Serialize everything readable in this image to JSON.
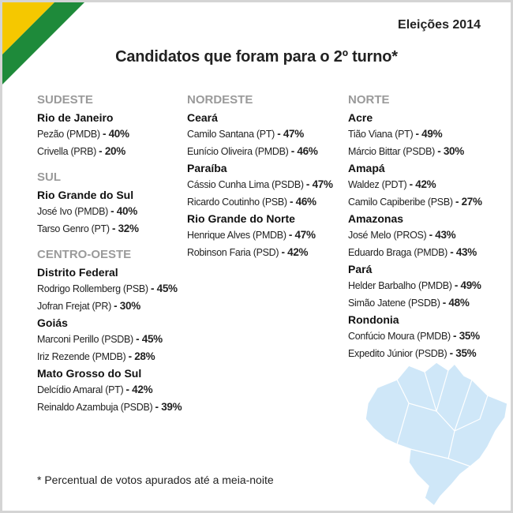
{
  "header": {
    "kicker": "Eleições 2014",
    "title": "Candidatos que foram para o 2º turno*"
  },
  "columns": [
    {
      "regions": [
        {
          "name": "SUDESTE",
          "states": [
            {
              "name": "Rio de Janeiro",
              "candidates": [
                {
                  "name": "Pezão (PMDB)",
                  "result": "- 40%"
                },
                {
                  "name": "Crivella (PRB)",
                  "result": "- 20%"
                }
              ]
            }
          ]
        },
        {
          "name": "SUL",
          "states": [
            {
              "name": "Rio Grande do Sul",
              "candidates": [
                {
                  "name": "José Ivo (PMDB)",
                  "result": "- 40%"
                },
                {
                  "name": "Tarso Genro (PT)",
                  "result": "- 32%"
                }
              ]
            }
          ]
        },
        {
          "name": "CENTRO-OESTE",
          "states": [
            {
              "name": "Distrito Federal",
              "candidates": [
                {
                  "name": "Rodrigo Rollemberg (PSB)",
                  "result": "- 45%"
                },
                {
                  "name": "Jofran Frejat (PR)",
                  "result": "- 30%"
                }
              ]
            },
            {
              "name": "Goiás",
              "candidates": [
                {
                  "name": "Marconi Perillo (PSDB)",
                  "result": "- 45%"
                },
                {
                  "name": "Iriz Rezende (PMDB)",
                  "result": "- 28%"
                }
              ]
            },
            {
              "name": "Mato Grosso do Sul",
              "candidates": [
                {
                  "name": "Delcídio Amaral (PT)",
                  "result": "- 42%"
                },
                {
                  "name": "Reinaldo Azambuja (PSDB)",
                  "result": "- 39%"
                }
              ]
            }
          ]
        }
      ]
    },
    {
      "regions": [
        {
          "name": "NORDESTE",
          "states": [
            {
              "name": "Ceará",
              "candidates": [
                {
                  "name": "Camilo Santana (PT)",
                  "result": "- 47%"
                },
                {
                  "name": "Eunício Oliveira (PMDB)",
                  "result": "- 46%"
                }
              ]
            },
            {
              "name": "Paraíba",
              "candidates": [
                {
                  "name": "Cássio Cunha Lima (PSDB)",
                  "result": "- 47%"
                },
                {
                  "name": "Ricardo Coutinho (PSB)",
                  "result": "- 46%"
                }
              ]
            },
            {
              "name": "Rio Grande do Norte",
              "candidates": [
                {
                  "name": "Henrique Alves (PMDB)",
                  "result": "- 47%"
                },
                {
                  "name": "Robinson Faria (PSD)",
                  "result": "- 42%"
                }
              ]
            }
          ]
        }
      ]
    },
    {
      "regions": [
        {
          "name": "NORTE",
          "states": [
            {
              "name": "Acre",
              "candidates": [
                {
                  "name": "Tião Viana (PT)",
                  "result": "- 49%"
                },
                {
                  "name": "Márcio Bittar (PSDB)",
                  "result": "- 30%"
                }
              ]
            },
            {
              "name": "Amapá",
              "candidates": [
                {
                  "name": "Waldez (PDT)",
                  "result": "- 42%"
                },
                {
                  "name": "Camilo Capiberibe (PSB)",
                  "result": "- 27%"
                }
              ]
            },
            {
              "name": "Amazonas",
              "candidates": [
                {
                  "name": "José Melo (PROS)",
                  "result": "- 43%"
                },
                {
                  "name": "Eduardo Braga (PMDB)",
                  "result": "- 43%"
                }
              ]
            },
            {
              "name": "Pará",
              "candidates": [
                {
                  "name": "Helder Barbalho (PMDB)",
                  "result": "- 49%"
                },
                {
                  "name": "Simão Jatene (PSDB)",
                  "result": "- 48%"
                }
              ]
            },
            {
              "name": "Rondonia",
              "candidates": [
                {
                  "name": "Confúcio Moura (PMDB)",
                  "result": "- 35%"
                },
                {
                  "name": "Expedito Júnior (PSDB)",
                  "result": "- 35%"
                }
              ]
            }
          ]
        }
      ]
    }
  ],
  "footnote": "* Percentual de votos apurados até a meia-noite"
}
